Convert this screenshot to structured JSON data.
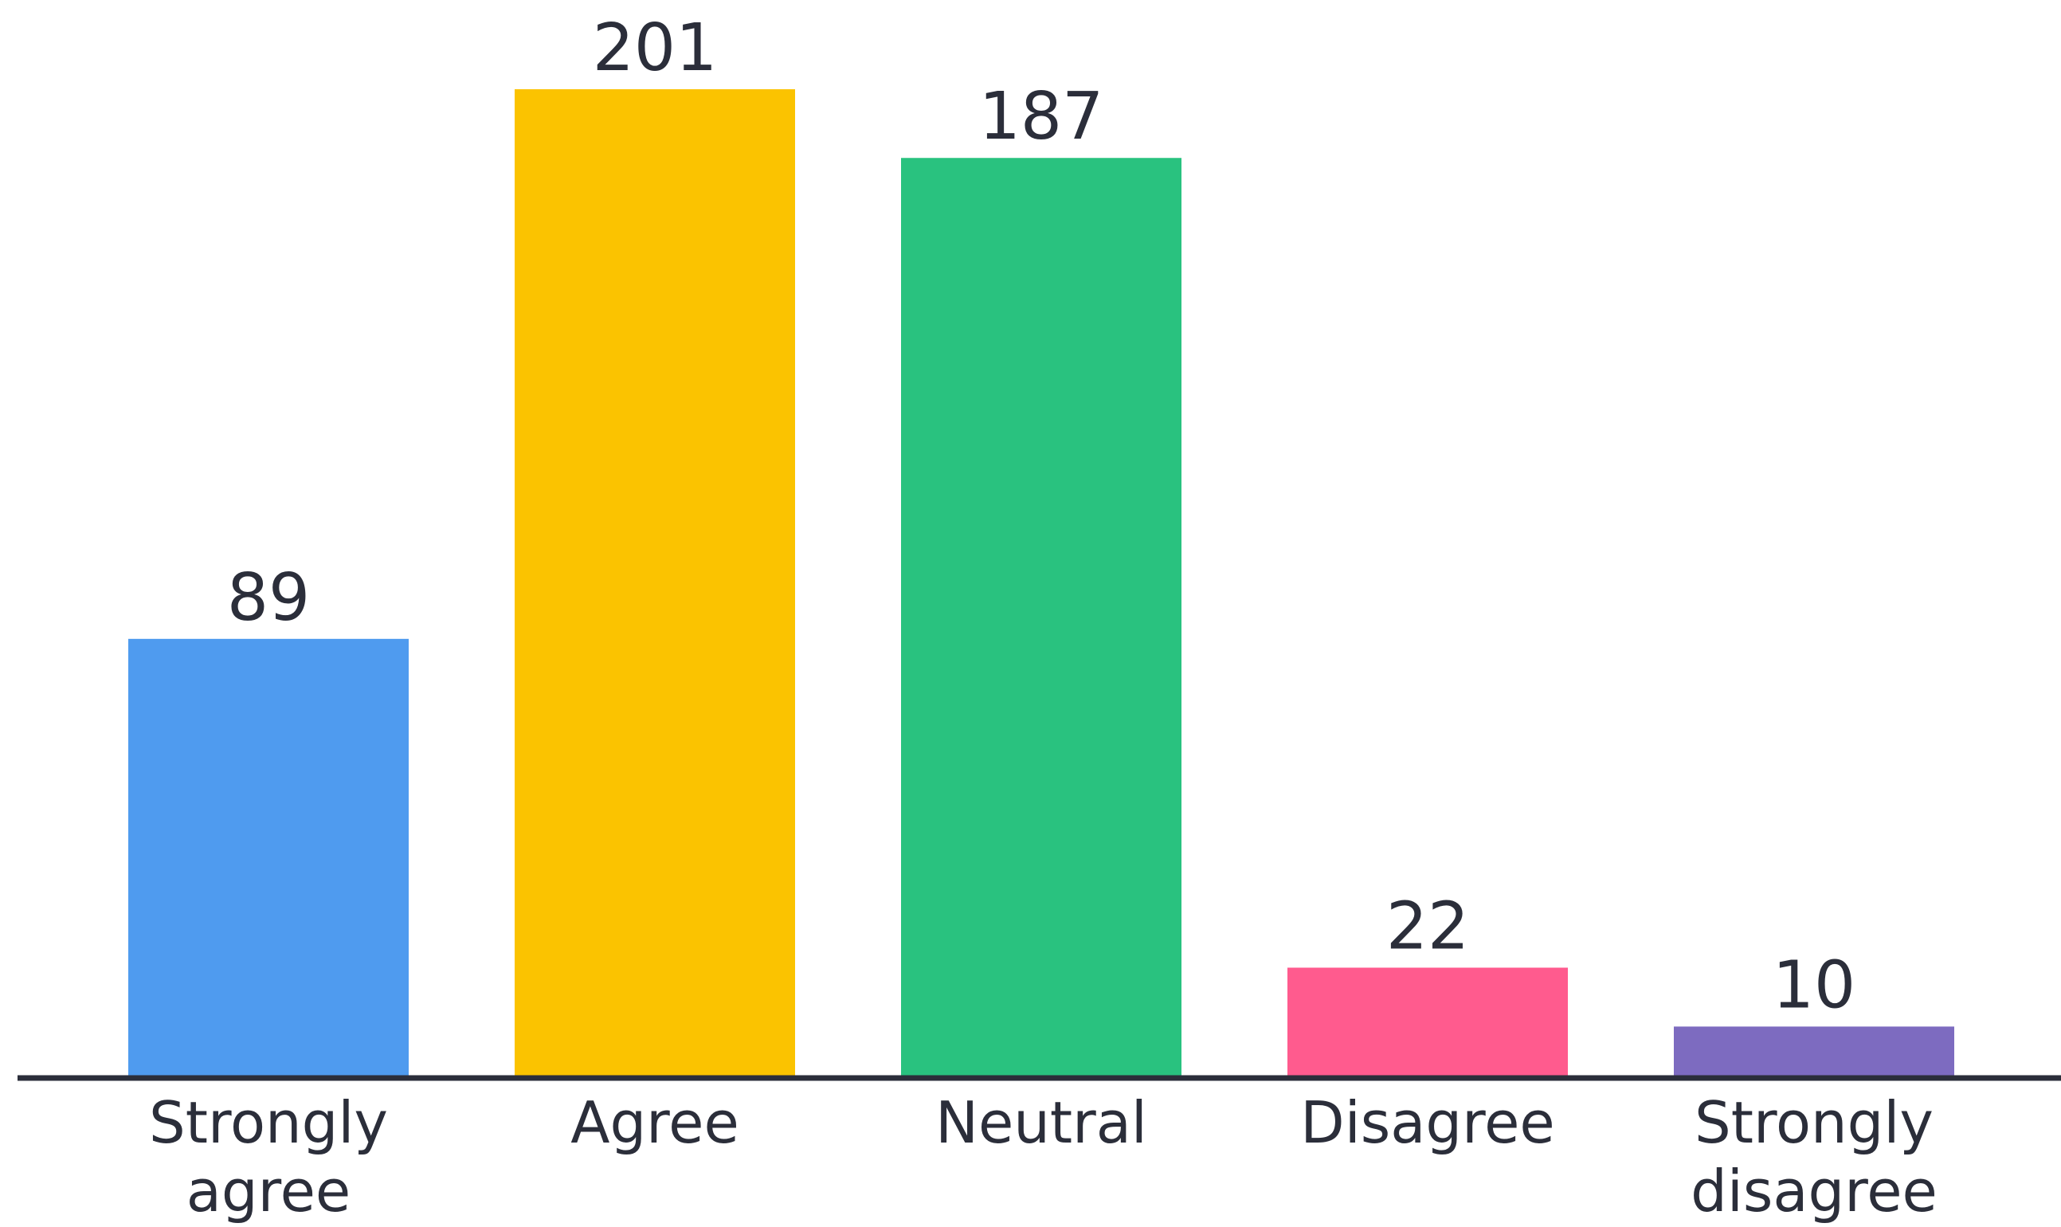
{
  "chart_data": {
    "type": "bar",
    "title": "",
    "xlabel": "",
    "ylabel": "",
    "ylim": [
      0,
      201
    ],
    "grid": false,
    "legend": "none",
    "categories": [
      "Strongly agree",
      "Agree",
      "Neutral",
      "Disagree",
      "Strongly disagree"
    ],
    "category_lines": [
      [
        "Strongly",
        "agree"
      ],
      [
        "Agree"
      ],
      [
        "Neutral"
      ],
      [
        "Disagree"
      ],
      [
        "Strongly",
        "disagree"
      ]
    ],
    "values": [
      89,
      201,
      187,
      22,
      10
    ],
    "colors": [
      "#4f9bef",
      "#fbc300",
      "#29c27f",
      "#ff5b8e",
      "#7d6bc0"
    ],
    "axis_color": "#2b2e3a",
    "text_color": "#2b2e3a"
  }
}
